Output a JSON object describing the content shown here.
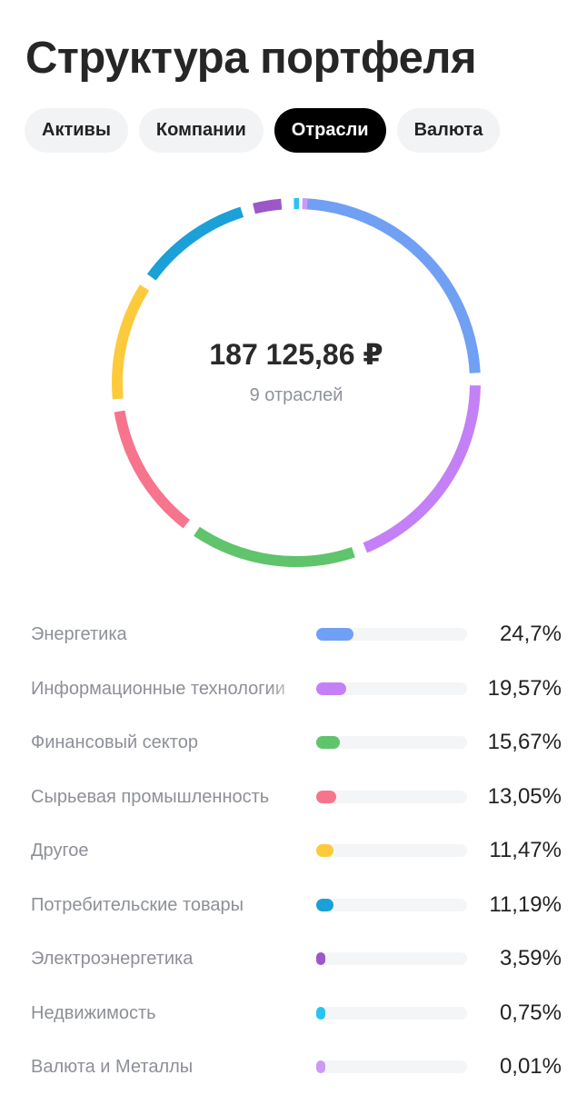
{
  "page": {
    "title": "Структура портфеля"
  },
  "tabs": [
    {
      "label": "Активы",
      "active": false
    },
    {
      "label": "Компании",
      "active": false
    },
    {
      "label": "Отрасли",
      "active": true
    },
    {
      "label": "Валюта",
      "active": false
    }
  ],
  "summary": {
    "total": "187 125,86 ₽",
    "count_label": "9 отраслей"
  },
  "chart_data": {
    "type": "pie",
    "variant": "donut",
    "categories": [
      "Энергетика",
      "Информационные технологии",
      "Финансовый сектор",
      "Сырьевая промышленность",
      "Другое",
      "Потребительские товары",
      "Электроэнергетика",
      "Недвижимость",
      "Валюта и Металлы"
    ],
    "values": [
      24.7,
      19.57,
      15.67,
      13.05,
      11.47,
      11.19,
      3.59,
      0.75,
      0.01
    ],
    "value_labels": [
      "24,7%",
      "19,57%",
      "15,67%",
      "13,05%",
      "11,47%",
      "11,19%",
      "3,59%",
      "0,75%",
      "0,01%"
    ],
    "colors": [
      "#6fa0f3",
      "#c480f6",
      "#5fc46b",
      "#f7748d",
      "#fdca3b",
      "#1ba0d8",
      "#9b58c6",
      "#27c3f3",
      "#cd99f4"
    ]
  }
}
